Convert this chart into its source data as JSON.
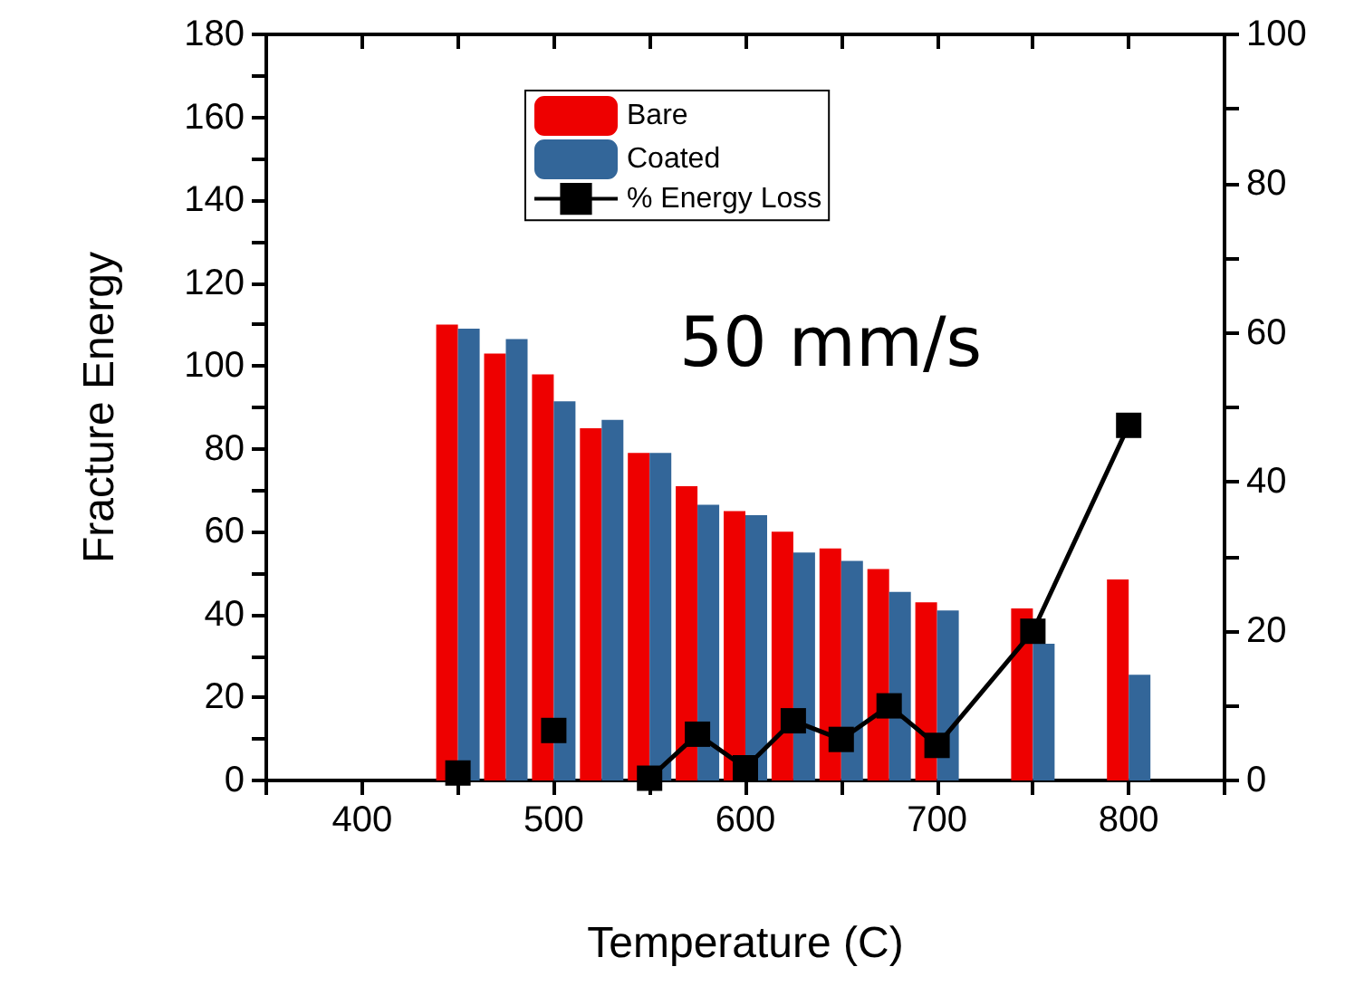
{
  "chart_data": {
    "type": "bar",
    "xlabel": "Temperature (C)",
    "ylabel": "Fracture Energy",
    "annotations": [
      "50 mm/s"
    ],
    "x": [
      450,
      475,
      500,
      525,
      550,
      575,
      600,
      625,
      650,
      675,
      700,
      750,
      800
    ],
    "series": [
      {
        "name": "Bare",
        "color": "#ee0000",
        "values": [
          110,
          103,
          98,
          85,
          79,
          71,
          65,
          60,
          56,
          51,
          43,
          41.5,
          48.5
        ]
      },
      {
        "name": "Coated",
        "color": "#336699",
        "values": [
          109,
          106.5,
          91.5,
          87,
          79,
          66.5,
          64,
          55,
          53,
          45.5,
          41,
          33,
          25.5
        ]
      },
      {
        "name": "% Energy Loss",
        "type": "line",
        "axis": "y2",
        "color": "#000000",
        "marker": "square",
        "line_style": "solid",
        "values": [
          1,
          null,
          6.7,
          null,
          0.3,
          6.2,
          1.7,
          8,
          5.5,
          10,
          4.7,
          20,
          47.6
        ]
      }
    ],
    "xlim": [
      350,
      850
    ],
    "xticks": [
      {
        "value": 350,
        "label": null
      },
      400,
      {
        "value": 450,
        "label": null
      },
      500,
      {
        "value": 550,
        "label": null
      },
      600,
      {
        "value": 650,
        "label": null
      },
      700,
      {
        "value": 750,
        "label": null
      },
      800,
      {
        "value": 850,
        "label": null
      }
    ],
    "ylim": [
      0,
      180
    ],
    "yticks": [
      0,
      {
        "value": 10,
        "label": null
      },
      20,
      {
        "value": 30,
        "label": null
      },
      40,
      {
        "value": 50,
        "label": null
      },
      60,
      {
        "value": 70,
        "label": null
      },
      80,
      {
        "value": 90,
        "label": null
      },
      100,
      {
        "value": 110,
        "label": null
      },
      120,
      {
        "value": 130,
        "label": null
      },
      140,
      {
        "value": 150,
        "label": null
      },
      160,
      {
        "value": 170,
        "label": null
      },
      180
    ],
    "y2lim": [
      0,
      100
    ],
    "y2ticks": [
      0,
      {
        "value": 10,
        "label": null
      },
      20,
      {
        "value": 30,
        "label": null
      },
      40,
      {
        "value": 50,
        "label": null
      },
      60,
      {
        "value": 70,
        "label": null
      },
      80,
      {
        "value": 90,
        "label": null
      },
      100
    ],
    "grid": false,
    "legend": "top"
  }
}
